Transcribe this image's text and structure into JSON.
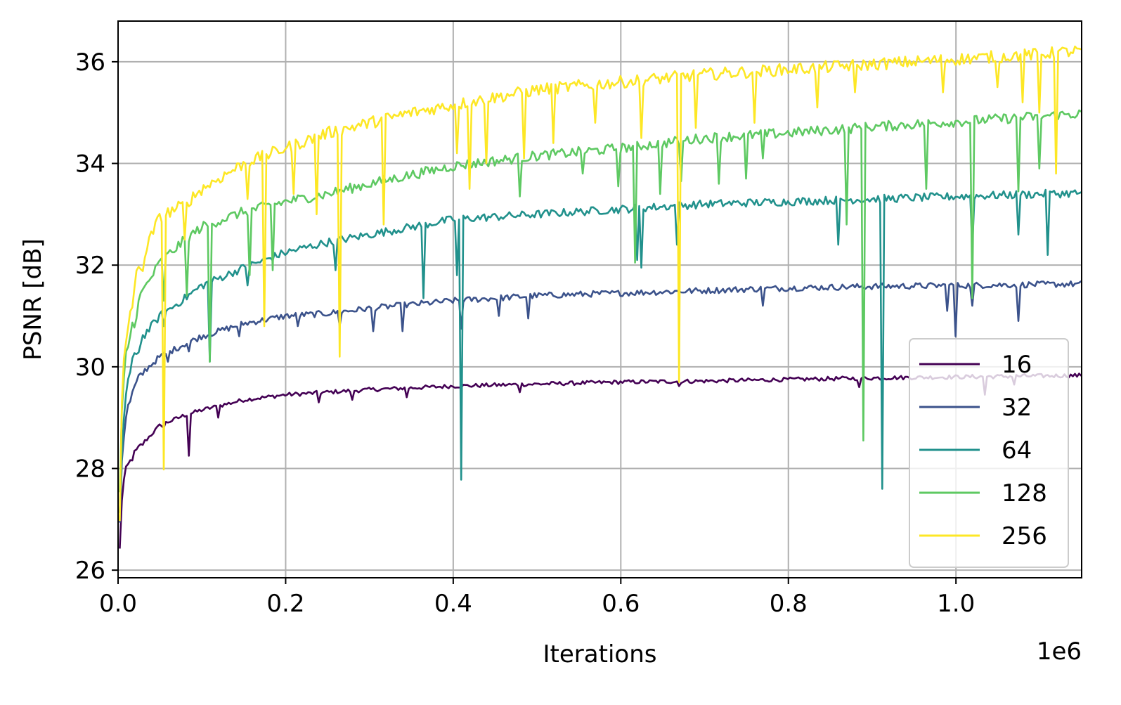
{
  "chart_data": {
    "type": "line",
    "xlabel": "Iterations",
    "ylabel": "PSNR [dB]",
    "x_offset_text": "1e6",
    "xlim": [
      0,
      1150000
    ],
    "ylim": [
      25.85,
      36.8
    ],
    "grid": true,
    "legend_placement": "lower right",
    "x_ticks": [
      {
        "value": 0,
        "label": "0.0"
      },
      {
        "value": 200000,
        "label": "0.2"
      },
      {
        "value": 400000,
        "label": "0.4"
      },
      {
        "value": 600000,
        "label": "0.6"
      },
      {
        "value": 800000,
        "label": "0.8"
      },
      {
        "value": 1000000,
        "label": "1.0"
      }
    ],
    "y_ticks": [
      {
        "value": 26,
        "label": "26"
      },
      {
        "value": 28,
        "label": "28"
      },
      {
        "value": 30,
        "label": "30"
      },
      {
        "value": 32,
        "label": "32"
      },
      {
        "value": 34,
        "label": "34"
      },
      {
        "value": 36,
        "label": "36"
      }
    ],
    "series": [
      {
        "name": "16",
        "color": "#440154",
        "points": [
          [
            2000,
            26.4
          ],
          [
            5000,
            27.6
          ],
          [
            10000,
            28.0
          ],
          [
            20000,
            28.3
          ],
          [
            30000,
            28.5
          ],
          [
            50000,
            28.85
          ],
          [
            80000,
            29.05
          ],
          [
            100000,
            29.15
          ],
          [
            150000,
            29.35
          ],
          [
            200000,
            29.45
          ],
          [
            250000,
            29.5
          ],
          [
            300000,
            29.55
          ],
          [
            400000,
            29.62
          ],
          [
            500000,
            29.66
          ],
          [
            600000,
            29.7
          ],
          [
            700000,
            29.72
          ],
          [
            800000,
            29.75
          ],
          [
            900000,
            29.78
          ],
          [
            1000000,
            29.8
          ],
          [
            1150000,
            29.83
          ]
        ],
        "dips": [
          [
            85000,
            28.25
          ],
          [
            56000,
            28.8
          ],
          [
            120000,
            29.0
          ],
          [
            240000,
            29.3
          ],
          [
            280000,
            29.35
          ],
          [
            345000,
            29.4
          ],
          [
            480000,
            29.5
          ],
          [
            670000,
            29.62
          ],
          [
            885000,
            29.6
          ],
          [
            1035000,
            29.45
          ],
          [
            1070000,
            29.65
          ]
        ]
      },
      {
        "name": "32",
        "color": "#3b528b",
        "points": [
          [
            2000,
            27.0
          ],
          [
            5000,
            28.4
          ],
          [
            10000,
            29.1
          ],
          [
            20000,
            29.6
          ],
          [
            30000,
            29.9
          ],
          [
            50000,
            30.2
          ],
          [
            80000,
            30.45
          ],
          [
            100000,
            30.6
          ],
          [
            150000,
            30.85
          ],
          [
            200000,
            31.0
          ],
          [
            250000,
            31.05
          ],
          [
            300000,
            31.15
          ],
          [
            400000,
            31.3
          ],
          [
            500000,
            31.4
          ],
          [
            600000,
            31.45
          ],
          [
            700000,
            31.5
          ],
          [
            800000,
            31.55
          ],
          [
            900000,
            31.58
          ],
          [
            1000000,
            31.6
          ],
          [
            1150000,
            31.63
          ]
        ],
        "dips": [
          [
            60000,
            30.1
          ],
          [
            85000,
            30.3
          ],
          [
            145000,
            30.6
          ],
          [
            215000,
            30.8
          ],
          [
            265000,
            30.8
          ],
          [
            305000,
            30.7
          ],
          [
            340000,
            30.7
          ],
          [
            410000,
            30.75
          ],
          [
            455000,
            31.0
          ],
          [
            490000,
            30.95
          ],
          [
            770000,
            31.2
          ],
          [
            990000,
            31.1
          ],
          [
            1000000,
            30.6
          ],
          [
            1020000,
            31.2
          ],
          [
            1075000,
            30.9
          ]
        ]
      },
      {
        "name": "64",
        "color": "#21918c",
        "points": [
          [
            2000,
            27.0
          ],
          [
            5000,
            28.6
          ],
          [
            10000,
            29.6
          ],
          [
            20000,
            30.2
          ],
          [
            30000,
            30.6
          ],
          [
            50000,
            31.0
          ],
          [
            80000,
            31.35
          ],
          [
            100000,
            31.6
          ],
          [
            150000,
            31.95
          ],
          [
            200000,
            32.25
          ],
          [
            250000,
            32.45
          ],
          [
            300000,
            32.6
          ],
          [
            400000,
            32.9
          ],
          [
            500000,
            33.0
          ],
          [
            600000,
            33.1
          ],
          [
            700000,
            33.2
          ],
          [
            800000,
            33.25
          ],
          [
            900000,
            33.3
          ],
          [
            1000000,
            33.35
          ],
          [
            1150000,
            33.42
          ]
        ],
        "dips": [
          [
            56000,
            30.8
          ],
          [
            110000,
            30.1
          ],
          [
            155000,
            31.6
          ],
          [
            260000,
            31.9
          ],
          [
            365000,
            31.35
          ],
          [
            405000,
            31.8
          ],
          [
            410000,
            27.78
          ],
          [
            620000,
            32.1
          ],
          [
            625000,
            31.95
          ],
          [
            668000,
            32.4
          ],
          [
            860000,
            32.4
          ],
          [
            912000,
            27.6
          ],
          [
            1020000,
            32.35
          ],
          [
            1075000,
            32.6
          ],
          [
            1110000,
            32.2
          ]
        ]
      },
      {
        "name": "128",
        "color": "#5ec962",
        "points": [
          [
            2000,
            27.4
          ],
          [
            5000,
            29.3
          ],
          [
            10000,
            30.3
          ],
          [
            20000,
            31.0
          ],
          [
            30000,
            31.5
          ],
          [
            50000,
            32.05
          ],
          [
            80000,
            32.5
          ],
          [
            100000,
            32.75
          ],
          [
            150000,
            33.05
          ],
          [
            200000,
            33.25
          ],
          [
            250000,
            33.4
          ],
          [
            300000,
            33.6
          ],
          [
            400000,
            33.95
          ],
          [
            500000,
            34.15
          ],
          [
            600000,
            34.3
          ],
          [
            700000,
            34.5
          ],
          [
            800000,
            34.6
          ],
          [
            900000,
            34.72
          ],
          [
            1000000,
            34.82
          ],
          [
            1150000,
            34.98
          ]
        ],
        "dips": [
          [
            56000,
            31.3
          ],
          [
            82000,
            31.4
          ],
          [
            110000,
            30.1
          ],
          [
            158000,
            31.8
          ],
          [
            185000,
            31.9
          ],
          [
            480000,
            33.35
          ],
          [
            555000,
            33.8
          ],
          [
            598000,
            33.55
          ],
          [
            618000,
            32.05
          ],
          [
            648000,
            33.4
          ],
          [
            672000,
            33.65
          ],
          [
            718000,
            33.6
          ],
          [
            750000,
            33.7
          ],
          [
            770000,
            34.1
          ],
          [
            870000,
            32.8
          ],
          [
            890000,
            28.55
          ],
          [
            965000,
            33.5
          ],
          [
            1020000,
            31.35
          ],
          [
            1075000,
            33.45
          ],
          [
            1100000,
            33.9
          ]
        ]
      },
      {
        "name": "256",
        "color": "#fde725",
        "points": [
          [
            2000,
            26.9
          ],
          [
            5000,
            29.6
          ],
          [
            10000,
            30.6
          ],
          [
            20000,
            31.6
          ],
          [
            30000,
            32.1
          ],
          [
            40000,
            32.6
          ],
          [
            50000,
            32.95
          ],
          [
            80000,
            33.2
          ],
          [
            100000,
            33.5
          ],
          [
            150000,
            34.0
          ],
          [
            200000,
            34.3
          ],
          [
            250000,
            34.6
          ],
          [
            300000,
            34.8
          ],
          [
            350000,
            35.0
          ],
          [
            400000,
            35.15
          ],
          [
            500000,
            35.45
          ],
          [
            600000,
            35.6
          ],
          [
            700000,
            35.75
          ],
          [
            800000,
            35.85
          ],
          [
            900000,
            35.95
          ],
          [
            1000000,
            36.05
          ],
          [
            1100000,
            36.15
          ],
          [
            1150000,
            36.22
          ]
        ],
        "dips": [
          [
            56000,
            27.98
          ],
          [
            80000,
            32.5
          ],
          [
            155000,
            33.3
          ],
          [
            175000,
            30.8
          ],
          [
            210000,
            33.4
          ],
          [
            238000,
            33.0
          ],
          [
            265000,
            30.2
          ],
          [
            318000,
            32.8
          ],
          [
            405000,
            34.2
          ],
          [
            420000,
            33.5
          ],
          [
            440000,
            34.0
          ],
          [
            485000,
            34.1
          ],
          [
            520000,
            34.4
          ],
          [
            570000,
            34.8
          ],
          [
            625000,
            34.5
          ],
          [
            670000,
            29.7
          ],
          [
            690000,
            34.7
          ],
          [
            760000,
            34.8
          ],
          [
            835000,
            35.1
          ],
          [
            880000,
            35.4
          ],
          [
            985000,
            35.4
          ],
          [
            1050000,
            35.5
          ],
          [
            1080000,
            35.2
          ],
          [
            1100000,
            35.0
          ],
          [
            1120000,
            33.8
          ]
        ]
      }
    ]
  }
}
